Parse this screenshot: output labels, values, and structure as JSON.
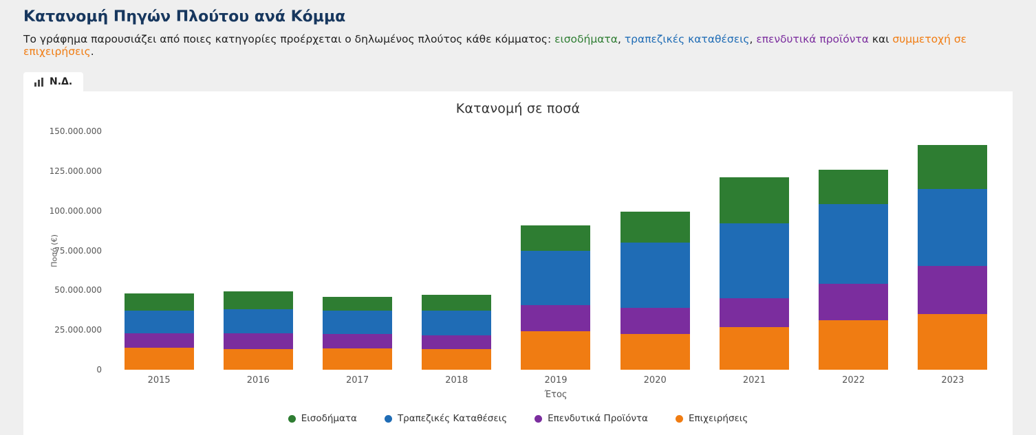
{
  "page": {
    "title": "Κατανομή Πηγών Πλούτου ανά Κόμμα",
    "subtitle_parts": [
      {
        "text": "Το γράφημα παρουσιάζει από ποιες κατηγορίες προέρχεται ο δηλωμένος πλούτος κάθε κόμματος: ",
        "color": null
      },
      {
        "text": "εισοδήματα",
        "color": "#2e7d32"
      },
      {
        "text": ", ",
        "color": null
      },
      {
        "text": "τραπεζικές καταθέσεις",
        "color": "#1f6cb5"
      },
      {
        "text": ", ",
        "color": null
      },
      {
        "text": "επενδυτικά προϊόντα",
        "color": "#7b2d9e"
      },
      {
        "text": " και ",
        "color": null
      },
      {
        "text": "συμμετοχή σε επιχειρήσεις",
        "color": "#f07c12"
      },
      {
        "text": ".",
        "color": null
      }
    ]
  },
  "tabs": [
    {
      "label": "Ν.Δ.",
      "active": true
    }
  ],
  "colors": {
    "income": "#2e7d32",
    "deposits": "#1f6cb5",
    "investments": "#7b2d9e",
    "business": "#f07c12",
    "title": "#17375e",
    "panel": "#ffffff",
    "page_bg": "#efefef"
  },
  "chart_data": {
    "type": "bar",
    "stacked": true,
    "title": "Κατανομή σε ποσά",
    "xlabel": "Έτος",
    "ylabel": "Ποσό (€)",
    "ylim": [
      0,
      150000000
    ],
    "grid": false,
    "legend_position": "bottom",
    "yticks": [
      0,
      25000000,
      50000000,
      75000000,
      100000000,
      125000000,
      150000000
    ],
    "ytick_labels": [
      "0",
      "25.000.000",
      "50.000.000",
      "75.000.000",
      "100.000.000",
      "125.000.000",
      "150.000.000"
    ],
    "categories": [
      "2015",
      "2016",
      "2017",
      "2018",
      "2019",
      "2020",
      "2021",
      "2022",
      "2023"
    ],
    "series": [
      {
        "name": "Επιχειρήσεις",
        "color": "#f07c12",
        "values": [
          14000000,
          13000000,
          13500000,
          13000000,
          24000000,
          22500000,
          27000000,
          31000000,
          35000000
        ]
      },
      {
        "name": "Επενδυτικά Προϊόντα",
        "color": "#7b2d9e",
        "values": [
          9000000,
          10000000,
          9000000,
          8500000,
          16500000,
          16500000,
          18000000,
          23000000,
          30500000
        ]
      },
      {
        "name": "Τραπεζικές Καταθέσεις",
        "color": "#1f6cb5",
        "values": [
          14000000,
          15000000,
          14500000,
          15500000,
          34500000,
          41000000,
          47000000,
          50000000,
          48000000
        ]
      },
      {
        "name": "Εισοδήματα",
        "color": "#2e7d32",
        "values": [
          11000000,
          11500000,
          9000000,
          10000000,
          16000000,
          19500000,
          29000000,
          22000000,
          28000000
        ]
      }
    ],
    "legend": [
      "Εισοδήματα",
      "Τραπεζικές Καταθέσεις",
      "Επενδυτικά Προϊόντα",
      "Επιχειρήσεις"
    ]
  }
}
